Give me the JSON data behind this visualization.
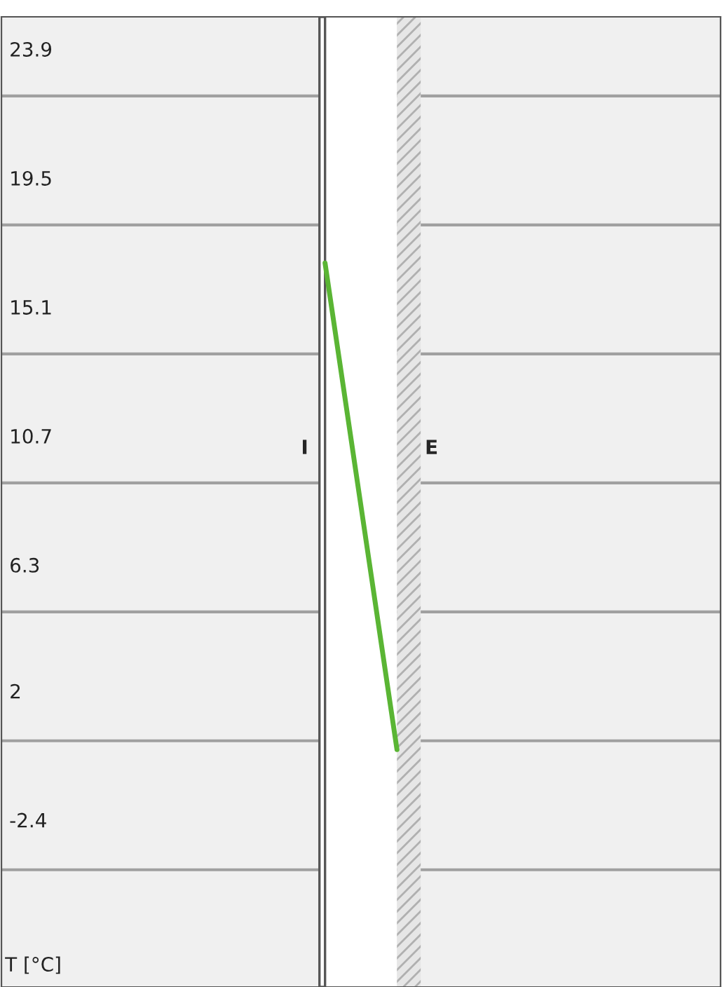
{
  "chart_data": {
    "type": "line",
    "ylabel": "T [°C]",
    "annotations": [
      "I",
      "E"
    ],
    "categories": [
      null,
      null,
      null,
      null,
      null,
      null,
      null,
      null,
      null,
      null
    ],
    "series": [
      {
        "color": "#5ab534",
        "values": [
          null,
          null,
          null,
          null,
          16.6,
          0.0,
          null,
          null,
          null,
          null
        ]
      }
    ],
    "ylim": [
      -8.1,
      25.0
    ],
    "yticks": [
      23.9,
      {
        "value": 22.3,
        "label": null
      },
      19.5,
      {
        "value": 17.9,
        "label": null
      },
      15.1,
      {
        "value": 13.5,
        "label": null
      },
      10.7,
      {
        "value": 9.1,
        "label": null
      },
      6.3,
      {
        "value": 4.7,
        "label": null
      },
      2,
      {
        "value": 0.3,
        "label": null
      },
      -2.4,
      {
        "value": -4.1,
        "label": null
      }
    ],
    "grid": "y",
    "tick_labels": "y",
    "marker": "none",
    "line_style": "solid"
  }
}
